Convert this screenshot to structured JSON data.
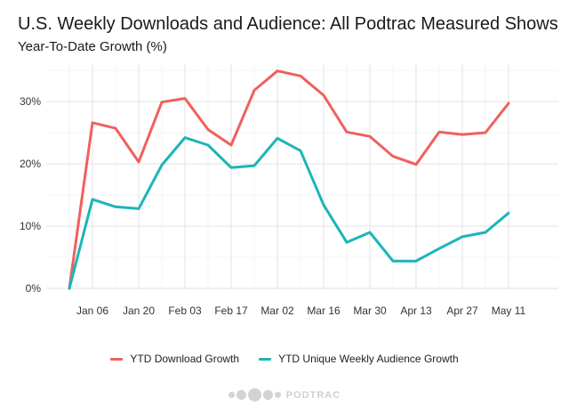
{
  "chart_data": {
    "type": "line",
    "title": "U.S. Weekly Downloads and Audience: All Podtrac Measured Shows",
    "subtitle": "Year-To-Date Growth (%)",
    "xlabel": "",
    "ylabel": "",
    "x_tick_labels": [
      "Jan 06",
      "Jan 20",
      "Feb 03",
      "Feb 17",
      "Mar 02",
      "Mar 16",
      "Mar 30",
      "Apr 13",
      "Apr 27",
      "May 11"
    ],
    "y_tick_labels": [
      "0%",
      "10%",
      "20%",
      "30%"
    ],
    "x": [
      "Dec 30",
      "Jan 06",
      "Jan 13",
      "Jan 20",
      "Jan 27",
      "Feb 03",
      "Feb 10",
      "Feb 17",
      "Feb 24",
      "Mar 02",
      "Mar 09",
      "Mar 16",
      "Mar 23",
      "Mar 30",
      "Apr 06",
      "Apr 13",
      "Apr 20",
      "Apr 27",
      "May 04",
      "May 11"
    ],
    "ylim": [
      0,
      36
    ],
    "grid": true,
    "legend_position": "bottom",
    "series": [
      {
        "name": "YTD Download Growth",
        "color": "#F0605D",
        "values": [
          0,
          26.6,
          25.7,
          20.3,
          29.9,
          30.5,
          25.5,
          23.0,
          31.8,
          34.9,
          34.1,
          31.0,
          25.1,
          24.4,
          21.2,
          19.9,
          25.1,
          24.7,
          25.0,
          29.7
        ]
      },
      {
        "name": "YTD Unique Weekly Audience Growth",
        "color": "#1CB5B8",
        "values": [
          0,
          14.3,
          13.1,
          12.8,
          19.8,
          24.2,
          23.0,
          19.4,
          19.7,
          24.1,
          22.1,
          13.4,
          7.4,
          9.0,
          4.4,
          4.4,
          6.4,
          8.3,
          9.0,
          12.1
        ]
      }
    ]
  },
  "logo": {
    "text": "PODTRAC"
  }
}
